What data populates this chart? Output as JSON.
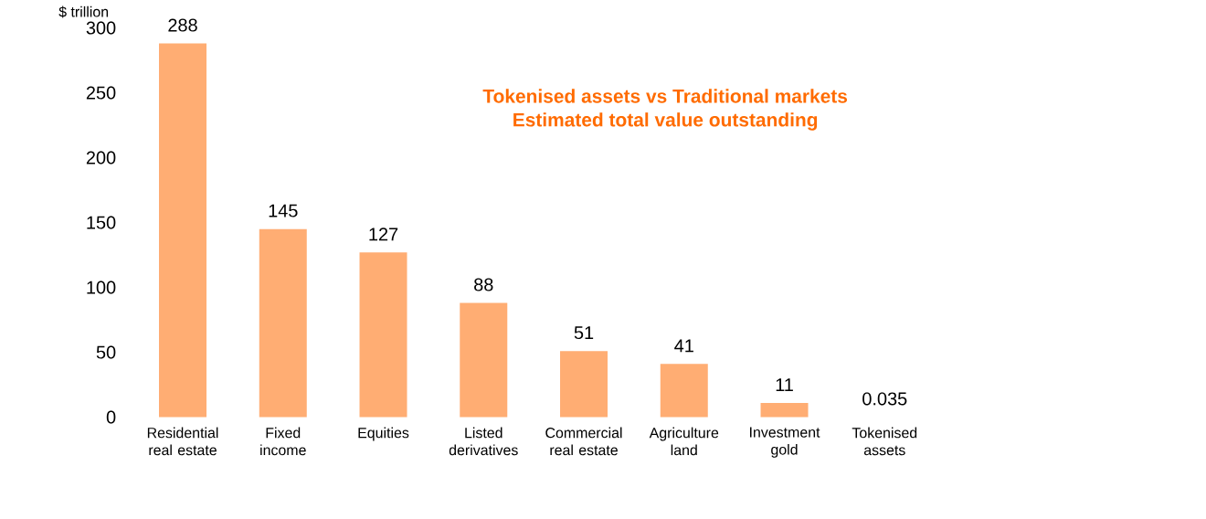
{
  "chart_data": {
    "type": "bar",
    "title": "Tokenised assets vs Traditional markets",
    "subtitle": "Estimated total value outstanding",
    "ylabel": "$ trillion",
    "categories": [
      "Residential real estate",
      "Fixed income",
      "Equities",
      "Listed derivatives",
      "Commercial real estate",
      "Agriculture land",
      "Investment gold",
      "Tokenised assets"
    ],
    "values": [
      288,
      145,
      127,
      88,
      51,
      41,
      11,
      0.035
    ],
    "color": "#ffad73",
    "data_labels": true,
    "grid": false,
    "ylim": [
      0,
      300
    ],
    "yticks": [
      0,
      50,
      100,
      150,
      200,
      250,
      300
    ]
  }
}
